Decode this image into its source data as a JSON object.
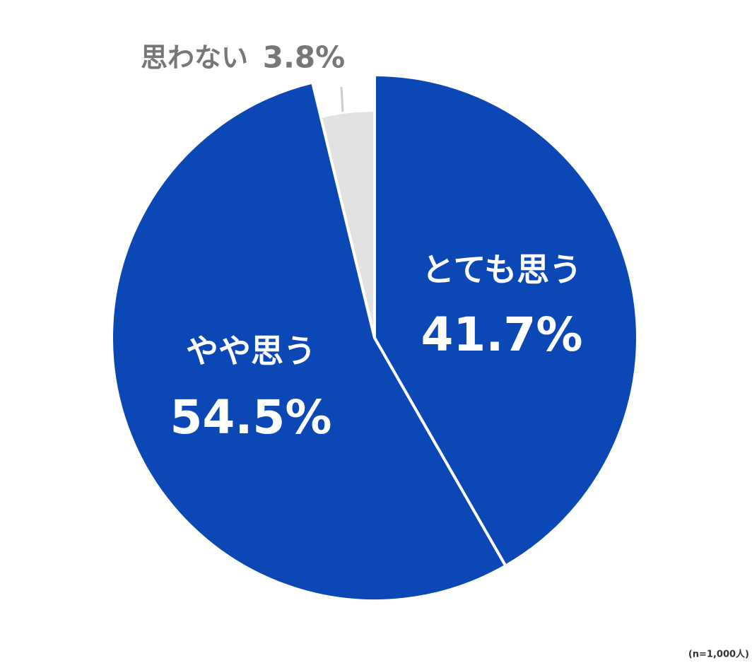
{
  "chart_data": {
    "type": "pie",
    "categories": [
      "とても思う",
      "やや思う",
      "思わない"
    ],
    "values": [
      41.7,
      54.5,
      3.8
    ],
    "value_labels": [
      "41.7%",
      "54.5%",
      "3.8%"
    ],
    "colors": [
      "#0b47b5",
      "#0b47b5",
      "#e2e2e2"
    ],
    "note": "(n=1,000人)"
  }
}
